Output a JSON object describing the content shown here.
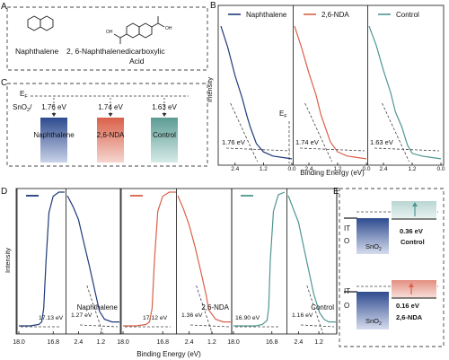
{
  "panels": {
    "A": {
      "letter": "A",
      "molecule_1": "Naphthalene",
      "molecule_2_line1": "2, 6-Naphthalenedicarboxylic",
      "molecule_2_line2": "Acid",
      "carboxyl_label": "OH"
    },
    "B": {
      "letter": "B",
      "ylabel": "Intensity",
      "xlabel": "Binding Energy (eV)",
      "ef_label": "E",
      "ef_sub": "F"
    },
    "C": {
      "letter": "C",
      "ef_label": "E",
      "ef_sub": "F",
      "sno2_label": "SnO",
      "sno2_sub": "2",
      "sno2_suffix": "/",
      "bars": [
        {
          "label": "Naphthalene",
          "value_text": "1.76 eV",
          "value": 1.76,
          "color": "#2e4b8f"
        },
        {
          "label": "2,6-NDA",
          "value_text": "1.74 eV",
          "value": 1.74,
          "color": "#d9614a"
        },
        {
          "label": "Control",
          "value_text": "1.63 eV",
          "value": 1.63,
          "color": "#5c9c94"
        }
      ]
    },
    "D": {
      "letter": "D",
      "ylabel": "Intensity",
      "xlabel": "Binding Energy (eV)"
    },
    "E": {
      "letter": "E",
      "ito_top": "IT",
      "ito_bottom": "O",
      "sno2_label": "SnO",
      "sno2_sub": "2",
      "control_value": "0.36 eV",
      "control_label": "Control",
      "nda_value": "0.16 eV",
      "nda_label": "2,6-NDA"
    }
  },
  "chart_data": [
    {
      "panel": "B",
      "type": "line",
      "xlabel": "Binding Energy (eV)",
      "ylabel": "Intensity",
      "x_reversed": true,
      "subplots": [
        {
          "name": "Naphthalene",
          "color": "#1f3a7a",
          "xlim": [
            3.0,
            0.0
          ],
          "xticks": [
            "2.4",
            "1.2",
            "0.0"
          ],
          "onset_label": "1.76 eV",
          "onset": 1.76,
          "x": [
            3.0,
            2.7,
            2.4,
            2.1,
            1.9,
            1.76,
            1.5,
            1.2,
            0.8,
            0.4,
            0.0
          ],
          "y": [
            0.98,
            0.82,
            0.62,
            0.46,
            0.33,
            0.25,
            0.13,
            0.07,
            0.04,
            0.03,
            0.02
          ]
        },
        {
          "name": "2,6-NDA",
          "color": "#d9614a",
          "xlim": [
            3.0,
            0.0
          ],
          "xticks": [
            "2.4",
            "1.2",
            "0.0"
          ],
          "onset_label": "1.74 eV",
          "onset": 1.74,
          "x": [
            3.0,
            2.7,
            2.4,
            2.1,
            1.9,
            1.74,
            1.5,
            1.2,
            0.8,
            0.4,
            0.0
          ],
          "y": [
            0.98,
            0.82,
            0.64,
            0.48,
            0.34,
            0.26,
            0.14,
            0.07,
            0.04,
            0.03,
            0.02
          ]
        },
        {
          "name": "Control",
          "color": "#4f9690",
          "xlim": [
            3.0,
            0.0
          ],
          "xticks": [
            "2.4",
            "1.2",
            "0.0"
          ],
          "onset_label": "1.63 eV",
          "onset": 1.63,
          "x": [
            3.0,
            2.7,
            2.4,
            2.1,
            1.9,
            1.63,
            1.4,
            1.2,
            0.8,
            0.4,
            0.0
          ],
          "y": [
            0.98,
            0.84,
            0.66,
            0.5,
            0.36,
            0.25,
            0.12,
            0.06,
            0.04,
            0.03,
            0.02
          ]
        }
      ]
    },
    {
      "panel": "D",
      "type": "line",
      "xlabel": "Binding Energy (eV)",
      "ylabel": "Intensity",
      "x_reversed": true,
      "groups": [
        {
          "name": "Naphthalene",
          "color": "#1f3a7a",
          "cutoff": {
            "xlim": [
              18.0,
              16.4
            ],
            "xticks": [
              "18.0",
              "16.8"
            ],
            "onset_label": "17.13 eV",
            "onset": 17.13,
            "x": [
              18.0,
              17.6,
              17.3,
              17.2,
              17.13,
              17.05,
              16.95,
              16.8,
              16.6,
              16.4
            ],
            "y": [
              0.02,
              0.02,
              0.03,
              0.05,
              0.15,
              0.5,
              0.85,
              0.97,
              1.0,
              1.0
            ]
          },
          "valence": {
            "xlim": [
              3.0,
              0.2
            ],
            "xticks": [
              "2.4",
              "1.2"
            ],
            "onset_label": "1.27 eV",
            "onset": 1.27,
            "caption": "Naphthalene",
            "x": [
              3.0,
              2.7,
              2.4,
              2.1,
              1.8,
              1.5,
              1.27,
              1.0,
              0.6,
              0.2
            ],
            "y": [
              1.0,
              0.92,
              0.82,
              0.64,
              0.46,
              0.27,
              0.13,
              0.07,
              0.05,
              0.05
            ]
          }
        },
        {
          "name": "2,6-NDA",
          "color": "#d9614a",
          "cutoff": {
            "xlim": [
              18.0,
              16.4
            ],
            "xticks": [
              "18.0",
              "16.8"
            ],
            "onset_label": "17.12 eV",
            "onset": 17.12,
            "x": [
              18.0,
              17.6,
              17.3,
              17.2,
              17.12,
              17.05,
              16.95,
              16.8,
              16.6,
              16.4
            ],
            "y": [
              0.02,
              0.02,
              0.03,
              0.05,
              0.15,
              0.5,
              0.86,
              0.97,
              1.0,
              1.0
            ]
          },
          "valence": {
            "xlim": [
              3.0,
              0.2
            ],
            "xticks": [
              "2.4",
              "1.2"
            ],
            "onset_label": "1.36 eV",
            "onset": 1.36,
            "caption": "2,6-NDA",
            "x": [
              3.0,
              2.7,
              2.4,
              2.1,
              1.8,
              1.5,
              1.36,
              1.0,
              0.6,
              0.2
            ],
            "y": [
              1.0,
              0.9,
              0.78,
              0.62,
              0.44,
              0.25,
              0.14,
              0.07,
              0.05,
              0.05
            ]
          }
        },
        {
          "name": "Control",
          "color": "#4f9690",
          "cutoff": {
            "xlim": [
              18.0,
              16.4
            ],
            "xticks": [
              "18.0",
              "16.8"
            ],
            "onset_label": "16.90 eV",
            "onset": 16.9,
            "x": [
              18.0,
              17.6,
              17.3,
              17.1,
              16.95,
              16.9,
              16.85,
              16.75,
              16.6,
              16.4
            ],
            "y": [
              0.02,
              0.02,
              0.02,
              0.03,
              0.06,
              0.15,
              0.5,
              0.86,
              0.98,
              1.0
            ]
          },
          "valence": {
            "xlim": [
              3.0,
              0.2
            ],
            "xticks": [
              "2.4",
              "1.2"
            ],
            "onset_label": "1.16 eV",
            "onset": 1.16,
            "caption": "Control",
            "x": [
              3.0,
              2.7,
              2.4,
              2.1,
              1.8,
              1.5,
              1.16,
              0.9,
              0.6,
              0.2
            ],
            "y": [
              1.0,
              0.9,
              0.8,
              0.62,
              0.44,
              0.26,
              0.12,
              0.07,
              0.05,
              0.05
            ]
          }
        }
      ]
    }
  ]
}
